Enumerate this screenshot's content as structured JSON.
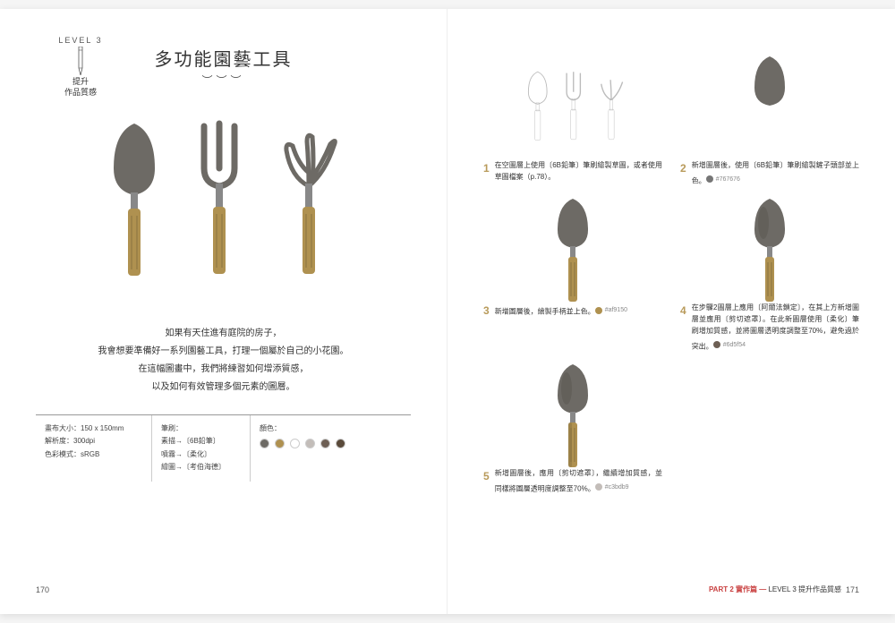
{
  "badge": {
    "level": "LEVEL 3",
    "line1": "提升",
    "line2": "作品質感"
  },
  "title": "多功能園藝工具",
  "wave": "︶︶︶",
  "intro": {
    "l1": "如果有天住進有庭院的房子，",
    "l2": "我會想要準備好一系列園藝工具，打理一個屬於自己的小花園。",
    "l3": "在這幅圖畫中，我們將練習如何增添質感，",
    "l4": "以及如何有效管理多個元素的圖層。"
  },
  "specs": {
    "col1": {
      "a": "畫布大小：150 x 150mm",
      "b": "解析度：300dpi",
      "c": "色彩模式：sRGB"
    },
    "col2": {
      "h": "筆刷：",
      "a": "素描→〔6B鉛筆〕",
      "b": "噴霧→〔柔化〕",
      "c": "繪圖→〔考伯海德〕"
    },
    "col3": {
      "h": "顏色："
    }
  },
  "palette": [
    "#6d6a65",
    "#af9150",
    "#ffffff",
    "#c3bdb9",
    "#6d5f54",
    "#5a4a3a"
  ],
  "tools": {
    "trowel_blade": "#6d6a65",
    "handle": "#af9150",
    "metal": "#888888"
  },
  "steps": [
    {
      "num": "1",
      "text": "在空圖層上使用〔6B鉛筆〕筆刷繪製草圖，或者使用草圖檔案（p.78）。",
      "chip": null,
      "variant": "sketch"
    },
    {
      "num": "2",
      "text": "新增圖層後，使用〔6B鉛筆〕筆刷繪製鏟子頭部並上色。",
      "chip": "#767676",
      "variant": "blade"
    },
    {
      "num": "3",
      "text": "新增圖層後，繪製手柄並上色。",
      "chip": "#af9150",
      "variant": "handle"
    },
    {
      "num": "4",
      "text": "在步驟2圖層上應用〔阿爾法鎖定〕，在其上方新增圖層並應用〔剪切遮罩〕。在此新圖層使用〔柔化〕筆刷增加質感，並將圖層透明度調整至70%，避免過於突出。",
      "chip": "#6d5f54",
      "variant": "shaded"
    },
    {
      "num": "5",
      "text": "新增圖層後，應用〔剪切遮罩〕，繼續增加質感，並同樣將圖層透明度調整至70%。",
      "chip": "#c3bdb9",
      "variant": "final"
    }
  ],
  "pageLeft": "170",
  "pageRight": "171",
  "footer": {
    "red": "PART 2 實作篇 —",
    "dark": "LEVEL 3 提升作品質感"
  }
}
